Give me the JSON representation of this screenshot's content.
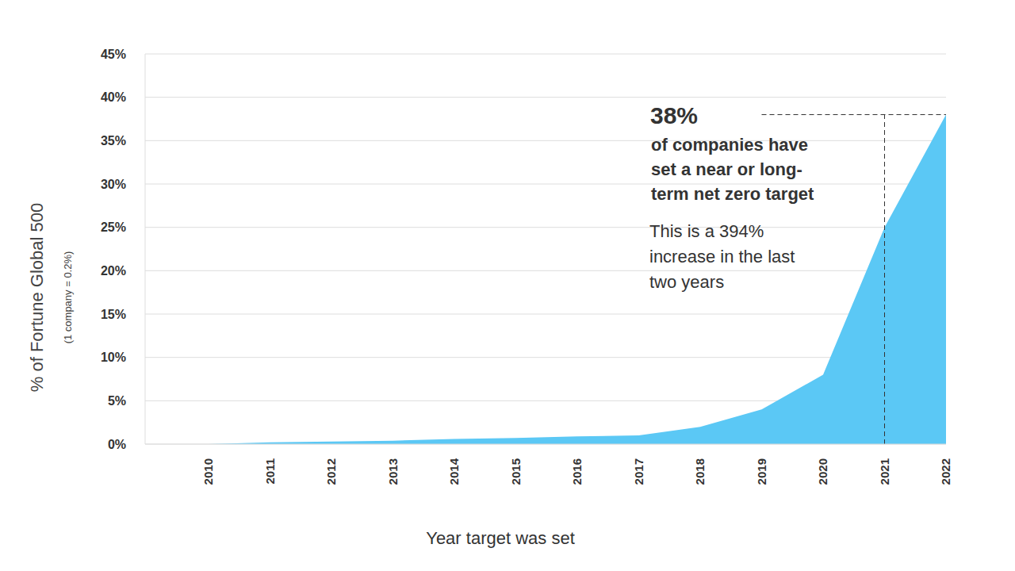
{
  "chart_data": {
    "type": "area",
    "categories": [
      "2010",
      "2011",
      "2012",
      "2013",
      "2014",
      "2015",
      "2016",
      "2017",
      "2018",
      "2019",
      "2020",
      "2021",
      "2022"
    ],
    "values": [
      0,
      0.2,
      0.3,
      0.4,
      0.6,
      0.7,
      0.9,
      1,
      2,
      4,
      8,
      25,
      38
    ],
    "color": "#5bc8f5",
    "ylim": [
      0,
      45
    ],
    "yticks": [
      {
        "value": 0,
        "label": "0%"
      },
      {
        "value": 5,
        "label": "5%"
      },
      {
        "value": 10,
        "label": "10%"
      },
      {
        "value": 15,
        "label": "15%"
      },
      {
        "value": 20,
        "label": "20%"
      },
      {
        "value": 25,
        "label": "25%"
      },
      {
        "value": 30,
        "label": "30%"
      },
      {
        "value": 35,
        "label": "35%"
      },
      {
        "value": 40,
        "label": "40%"
      },
      {
        "value": 45,
        "label": "45%"
      }
    ],
    "grid": true,
    "y_label": "% of Fortune Global 500",
    "y_sublabel": "(1 company = 0.2%)",
    "x_label": "Year target was set",
    "annotation": {
      "value": 38,
      "label": "38%",
      "headline": [
        "of companies have",
        "set a near or long-",
        "term net zero target"
      ],
      "text": [
        "This is a 394%",
        "increase in the last",
        "two years"
      ]
    }
  }
}
